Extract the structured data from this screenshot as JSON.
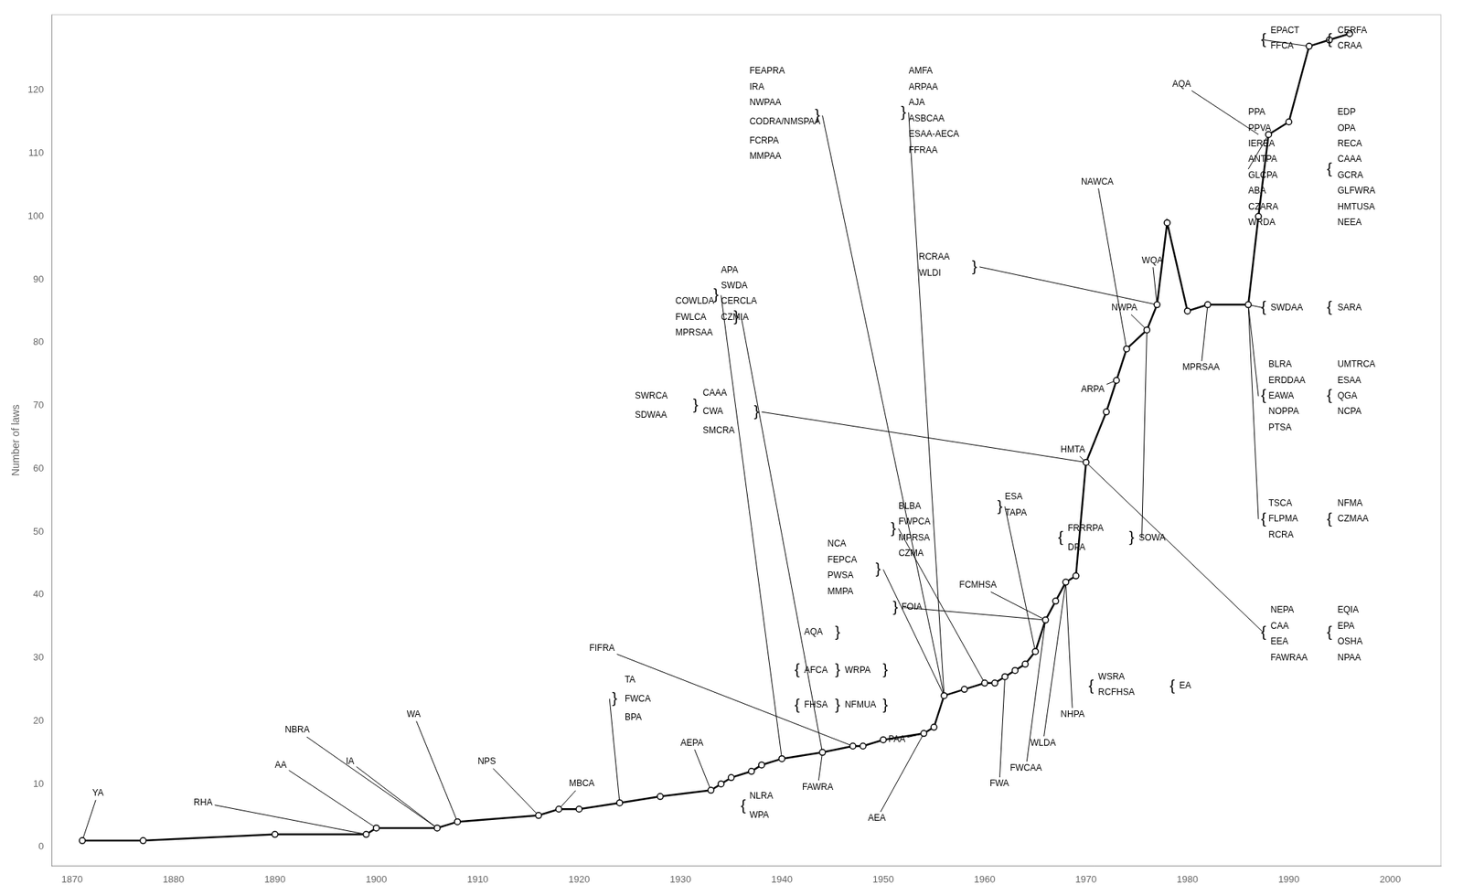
{
  "chart_data": {
    "type": "line",
    "ylabel": "Number of laws",
    "x": [
      1871,
      1877,
      1890,
      1899,
      1900,
      1906,
      1908,
      1916,
      1918,
      1920,
      1924,
      1928,
      1933,
      1934,
      1935,
      1937,
      1938,
      1940,
      1944,
      1947,
      1948,
      1950,
      1954,
      1955,
      1956,
      1958,
      1960,
      1961,
      1962,
      1963,
      1964,
      1965,
      1966,
      1967,
      1968,
      1969,
      1970,
      1972,
      1973,
      1974,
      1976,
      1977,
      1978,
      1980,
      1982,
      1986,
      1987,
      1988,
      1990,
      1992,
      1994,
      1996
    ],
    "values": [
      1,
      1,
      2,
      2,
      3,
      3,
      4,
      5,
      6,
      6,
      7,
      8,
      9,
      10,
      11,
      12,
      13,
      14,
      15,
      16,
      16,
      17,
      18,
      19,
      24,
      25,
      26,
      26,
      27,
      28,
      29,
      31,
      36,
      39,
      42,
      43,
      61,
      69,
      74,
      79,
      82,
      86,
      99,
      85,
      86,
      86,
      100,
      113,
      115,
      127,
      128,
      129
    ],
    "color": "#000000",
    "marker": "circle",
    "xlim": [
      1868,
      2005
    ],
    "ylim": [
      -3,
      132
    ],
    "xticks": [
      1870,
      1880,
      1890,
      1900,
      1910,
      1920,
      1930,
      1940,
      1950,
      1960,
      1970,
      1980,
      1990,
      2000
    ],
    "yticks": [
      0,
      10,
      20,
      30,
      40,
      50,
      60,
      70,
      80,
      90,
      100,
      110,
      120
    ],
    "grid": false,
    "annotations": [
      {
        "text": "YA",
        "x": 1872,
        "y": 8.5,
        "arrow_to": [
          1871,
          1
        ]
      },
      {
        "text": "RHA",
        "x": 1882,
        "y": 7,
        "arrow_to": [
          1899,
          2
        ]
      },
      {
        "text": "AA",
        "x": 1890,
        "y": 13,
        "arrow_to": [
          1900,
          3
        ]
      },
      {
        "text": "NBRA",
        "x": 1891,
        "y": 18.5,
        "arrow_to": [
          1906,
          3
        ]
      },
      {
        "text": "IA",
        "x": 1897,
        "y": 13.5,
        "arrow_to": [
          1906,
          3
        ]
      },
      {
        "text": "WA",
        "x": 1903,
        "y": 21,
        "arrow_to": [
          1908,
          4
        ]
      },
      {
        "text": "NPS",
        "x": 1910,
        "y": 13.5,
        "arrow_to": [
          1916,
          5
        ]
      },
      {
        "text": "MBCA",
        "x": 1919,
        "y": 10,
        "arrow_to": [
          1918,
          6
        ]
      },
      {
        "text": "TA",
        "x": 1924.5,
        "y": 26.5
      },
      {
        "text": "FWCA",
        "x": 1924.5,
        "y": 23.5
      },
      {
        "text": "BPA",
        "x": 1924.5,
        "y": 20.5
      },
      {
        "text": "}",
        "x": 1923.5,
        "y": 23.5
      },
      {
        "text": "FIFRA",
        "x": 1921,
        "y": 31.5,
        "arrow_to": [
          1947,
          16
        ]
      },
      {
        "text": "AEPA",
        "x": 1930,
        "y": 16.5,
        "arrow_to": [
          1933,
          9
        ]
      },
      {
        "text": "{",
        "x": 1936.2,
        "y": 6.5
      },
      {
        "text": "NLRA",
        "x": 1936.8,
        "y": 8.0
      },
      {
        "text": "WPA",
        "x": 1936.8,
        "y": 5.0
      },
      {
        "text": "FAWRA",
        "x": 1942,
        "y": 9.5,
        "arrow_to": [
          1944,
          15
        ]
      },
      {
        "text": "AEA",
        "x": 1948.5,
        "y": 4.5,
        "arrow_to": [
          1954,
          18
        ]
      },
      {
        "text": "{",
        "x": 1941.5,
        "y": 22.5
      },
      {
        "text": "FHSA",
        "x": 1942.2,
        "y": 22.5
      },
      {
        "text": "}",
        "x": 1945.5,
        "y": 22.5
      },
      {
        "text": "NFMUA",
        "x": 1946.2,
        "y": 22.5
      },
      {
        "text": "}",
        "x": 1950.2,
        "y": 22.5
      },
      {
        "text": "{",
        "x": 1941.5,
        "y": 28.0
      },
      {
        "text": "AFCA",
        "x": 1942.2,
        "y": 28.0
      },
      {
        "text": "}",
        "x": 1945.5,
        "y": 28.0
      },
      {
        "text": "WRPA",
        "x": 1946.2,
        "y": 28.0
      },
      {
        "text": "}",
        "x": 1950.2,
        "y": 28.0
      },
      {
        "text": "AQA",
        "x": 1942.2,
        "y": 34.0
      },
      {
        "text": "}",
        "x": 1945.5,
        "y": 34.0
      },
      {
        "text": "PAA",
        "x": 1950.5,
        "y": 17.0,
        "arrow_to": [
          1954,
          18
        ]
      },
      {
        "text": "NCA",
        "x": 1944.5,
        "y": 48.0
      },
      {
        "text": "FEPCA",
        "x": 1944.5,
        "y": 45.5
      },
      {
        "text": "PWSA",
        "x": 1944.5,
        "y": 43.0
      },
      {
        "text": "MMPA",
        "x": 1944.5,
        "y": 40.5
      },
      {
        "text": "}",
        "x": 1949.5,
        "y": 44.0
      },
      {
        "text": "BLBA",
        "x": 1951.5,
        "y": 54.0
      },
      {
        "text": "FWPCA",
        "x": 1951.5,
        "y": 51.5
      },
      {
        "text": "MPRSA",
        "x": 1951.5,
        "y": 49.0
      },
      {
        "text": "CZMA",
        "x": 1951.5,
        "y": 46.5
      },
      {
        "text": "}",
        "x": 1951.0,
        "y": 50.5
      },
      {
        "text": "ESA",
        "x": 1962.0,
        "y": 55.5
      },
      {
        "text": "TAPA",
        "x": 1962.0,
        "y": 53.0
      },
      {
        "text": "}",
        "x": 1961.5,
        "y": 54.0
      },
      {
        "text": "FCMHSA",
        "x": 1957.5,
        "y": 41.5,
        "arrow_to": [
          1966,
          36
        ]
      },
      {
        "text": "HMTA",
        "x": 1967.5,
        "y": 63.0,
        "arrow_to": [
          1970,
          61
        ]
      },
      {
        "text": "FWA",
        "x": 1960.5,
        "y": 10.0,
        "arrow_to": [
          1962,
          27
        ]
      },
      {
        "text": "FWCAA",
        "x": 1962.5,
        "y": 12.5,
        "arrow_to": [
          1966,
          36
        ]
      },
      {
        "text": "WLDA",
        "x": 1964.5,
        "y": 16.5,
        "arrow_to": [
          1968,
          42
        ]
      },
      {
        "text": "NHPA",
        "x": 1967.5,
        "y": 21.0,
        "arrow_to": [
          1968,
          42
        ]
      },
      {
        "text": "FOIA",
        "x": 1951.8,
        "y": 38.0
      },
      {
        "text": "}",
        "x": 1951.2,
        "y": 38.0
      },
      {
        "text": "ARPA",
        "x": 1969.5,
        "y": 72.5,
        "arrow_to": [
          1973,
          74
        ]
      },
      {
        "text": "NAWCA",
        "x": 1969.5,
        "y": 105.5,
        "arrow_to": [
          1974,
          79
        ]
      },
      {
        "text": "NWPA",
        "x": 1972.5,
        "y": 85.5,
        "arrow_to": [
          1976,
          82
        ]
      },
      {
        "text": "WQA",
        "x": 1975.5,
        "y": 93.0,
        "arrow_to": [
          1977,
          86
        ]
      },
      {
        "text": "RCRAA",
        "x": 1953.5,
        "y": 93.5
      },
      {
        "text": "WLDI",
        "x": 1953.5,
        "y": 91.0
      },
      {
        "text": "}",
        "x": 1959.0,
        "y": 92.0
      },
      {
        "text": "AMFA",
        "x": 1952.5,
        "y": 123.0
      },
      {
        "text": "ARPAA",
        "x": 1952.5,
        "y": 120.5
      },
      {
        "text": "AJA",
        "x": 1952.5,
        "y": 118.0
      },
      {
        "text": "ASBCAA",
        "x": 1952.5,
        "y": 115.5
      },
      {
        "text": "ESAA-AECA",
        "x": 1952.5,
        "y": 113.0
      },
      {
        "text": "FFRAA",
        "x": 1952.5,
        "y": 110.5
      },
      {
        "text": "}",
        "x": 1952.0,
        "y": 116.5
      },
      {
        "text": "FEAPRA",
        "x": 1936.8,
        "y": 123.0
      },
      {
        "text": "IRA",
        "x": 1936.8,
        "y": 120.5
      },
      {
        "text": "NWPAA",
        "x": 1936.8,
        "y": 118.0
      },
      {
        "text": "CODRA/NMSPAA",
        "x": 1936.8,
        "y": 115.0
      },
      {
        "text": "FCRPA",
        "x": 1936.8,
        "y": 112.0
      },
      {
        "text": "MMPAA",
        "x": 1936.8,
        "y": 109.5
      },
      {
        "text": "}",
        "x": 1943.5,
        "y": 116.0
      },
      {
        "text": "COWLDA",
        "x": 1929.5,
        "y": 86.5
      },
      {
        "text": "FWLCA",
        "x": 1929.5,
        "y": 84.0
      },
      {
        "text": "MPRSAA",
        "x": 1929.5,
        "y": 81.5
      },
      {
        "text": "}",
        "x": 1935.5,
        "y": 84.0
      },
      {
        "text": "APA",
        "x": 1934.0,
        "y": 91.5
      },
      {
        "text": "SWDA",
        "x": 1934.0,
        "y": 89.0
      },
      {
        "text": "CERCLA",
        "x": 1934.0,
        "y": 86.5
      },
      {
        "text": "CZMIA",
        "x": 1934.0,
        "y": 84.0
      },
      {
        "text": "}",
        "x": 1933.5,
        "y": 87.5
      },
      {
        "text": "SWRCA",
        "x": 1925.5,
        "y": 71.5
      },
      {
        "text": "SDWAA",
        "x": 1925.5,
        "y": 68.5
      },
      {
        "text": "}",
        "x": 1931.5,
        "y": 70.0
      },
      {
        "text": "CAAA",
        "x": 1932.2,
        "y": 72.0
      },
      {
        "text": "CWA",
        "x": 1932.2,
        "y": 69.0
      },
      {
        "text": "SMCRA",
        "x": 1932.2,
        "y": 66.0
      },
      {
        "text": "}",
        "x": 1937.5,
        "y": 69.0
      },
      {
        "text": "{",
        "x": 1967.5,
        "y": 49.0
      },
      {
        "text": "FRRRPA",
        "x": 1968.2,
        "y": 50.5
      },
      {
        "text": "DPA",
        "x": 1968.2,
        "y": 47.5
      },
      {
        "text": "}",
        "x": 1974.5,
        "y": 49.0
      },
      {
        "text": "SOWA",
        "x": 1975.2,
        "y": 49.0
      },
      {
        "text": "{",
        "x": 1970.5,
        "y": 25.5
      },
      {
        "text": "WSRA",
        "x": 1971.2,
        "y": 27.0
      },
      {
        "text": "RCFHSA",
        "x": 1971.2,
        "y": 24.5
      },
      {
        "text": "{",
        "x": 1978.5,
        "y": 25.5
      },
      {
        "text": "EA",
        "x": 1979.2,
        "y": 25.5
      },
      {
        "text": "MPRSAA",
        "x": 1979.5,
        "y": 76.0,
        "arrow_to": [
          1982,
          86
        ]
      },
      {
        "text": "BLRA",
        "x": 1988.0,
        "y": 76.5
      },
      {
        "text": "ERDDAA",
        "x": 1988.0,
        "y": 74.0
      },
      {
        "text": "EAWA",
        "x": 1988.0,
        "y": 71.5
      },
      {
        "text": "NOPPA",
        "x": 1988.0,
        "y": 69.0
      },
      {
        "text": "PTSA",
        "x": 1988.0,
        "y": 66.5
      },
      {
        "text": "{",
        "x": 1987.5,
        "y": 71.5
      },
      {
        "text": "{",
        "x": 1994.0,
        "y": 71.5
      },
      {
        "text": "UMTRCA",
        "x": 1994.8,
        "y": 76.5
      },
      {
        "text": "ESAA",
        "x": 1994.8,
        "y": 74.0
      },
      {
        "text": "QGA",
        "x": 1994.8,
        "y": 71.5
      },
      {
        "text": "NCPA",
        "x": 1994.8,
        "y": 69.0
      },
      {
        "text": "TSCA",
        "x": 1988.0,
        "y": 54.5
      },
      {
        "text": "FLPMA",
        "x": 1988.0,
        "y": 52.0
      },
      {
        "text": "RCRA",
        "x": 1988.0,
        "y": 49.5
      },
      {
        "text": "{",
        "x": 1987.5,
        "y": 52.0
      },
      {
        "text": "{",
        "x": 1994.0,
        "y": 52.0
      },
      {
        "text": "NFMA",
        "x": 1994.8,
        "y": 54.5
      },
      {
        "text": "CZMAA",
        "x": 1994.8,
        "y": 52.0
      },
      {
        "text": "{",
        "x": 1987.5,
        "y": 34.0
      },
      {
        "text": "NEPA",
        "x": 1988.2,
        "y": 37.5
      },
      {
        "text": "CAA",
        "x": 1988.2,
        "y": 35.0
      },
      {
        "text": "EEA",
        "x": 1988.2,
        "y": 32.5
      },
      {
        "text": "FAWRAA",
        "x": 1988.2,
        "y": 30.0
      },
      {
        "text": "{",
        "x": 1994.0,
        "y": 34.0
      },
      {
        "text": "EQIA",
        "x": 1994.8,
        "y": 37.5
      },
      {
        "text": "EPA",
        "x": 1994.8,
        "y": 35.0
      },
      {
        "text": "OSHA",
        "x": 1994.8,
        "y": 32.5
      },
      {
        "text": "NPAA",
        "x": 1994.8,
        "y": 30.0
      },
      {
        "text": "{",
        "x": 1987.5,
        "y": 85.5
      },
      {
        "text": "SWDAA",
        "x": 1988.2,
        "y": 85.5
      },
      {
        "text": "{",
        "x": 1994.0,
        "y": 85.5
      },
      {
        "text": "SARA",
        "x": 1994.8,
        "y": 85.5
      },
      {
        "text": "PPA",
        "x": 1986.0,
        "y": 116.5
      },
      {
        "text": "PPVA",
        "x": 1986.0,
        "y": 114.0
      },
      {
        "text": "IEREA",
        "x": 1986.0,
        "y": 111.5
      },
      {
        "text": "ANTPA",
        "x": 1986.0,
        "y": 109.0
      },
      {
        "text": "GLCPA",
        "x": 1986.0,
        "y": 106.5
      },
      {
        "text": "ABA",
        "x": 1986.0,
        "y": 104.0
      },
      {
        "text": "CZARA",
        "x": 1986.0,
        "y": 101.5
      },
      {
        "text": "WRDA",
        "x": 1986.0,
        "y": 99.0
      },
      {
        "text": "{",
        "x": 1994.0,
        "y": 107.5
      },
      {
        "text": "EDP",
        "x": 1994.8,
        "y": 116.5
      },
      {
        "text": "OPA",
        "x": 1994.8,
        "y": 114.0
      },
      {
        "text": "RECA",
        "x": 1994.8,
        "y": 111.5
      },
      {
        "text": "CAAA",
        "x": 1994.8,
        "y": 109.0
      },
      {
        "text": "GCRA",
        "x": 1994.8,
        "y": 106.5
      },
      {
        "text": "GLFWRA",
        "x": 1994.8,
        "y": 104.0
      },
      {
        "text": "HMTUSA",
        "x": 1994.8,
        "y": 101.5
      },
      {
        "text": "NEEA",
        "x": 1994.8,
        "y": 99.0
      },
      {
        "text": "AQA",
        "x": 1978.5,
        "y": 121.0,
        "arrow_to": [
          1987,
          113
        ]
      },
      {
        "text": "{",
        "x": 1987.5,
        "y": 128.0
      },
      {
        "text": "EPACT",
        "x": 1988.2,
        "y": 129.5
      },
      {
        "text": "FFCA",
        "x": 1988.2,
        "y": 127.0
      },
      {
        "text": "{",
        "x": 1994.0,
        "y": 128.0
      },
      {
        "text": "CERFA",
        "x": 1994.8,
        "y": 129.5
      },
      {
        "text": "CRAA",
        "x": 1994.8,
        "y": 127.0
      }
    ],
    "lines": [
      [
        [
          1923.0,
          23.5
        ],
        [
          1924,
          7
        ]
      ],
      [
        [
          1950.0,
          44.0
        ],
        [
          1956,
          24
        ]
      ],
      [
        [
          1951.5,
          50.5
        ],
        [
          1960,
          26
        ]
      ],
      [
        [
          1962.0,
          54.0
        ],
        [
          1965,
          31
        ]
      ],
      [
        [
          1952.0,
          38.0
        ],
        [
          1966,
          36
        ]
      ],
      [
        [
          1959.5,
          92.0
        ],
        [
          1977,
          86
        ]
      ],
      [
        [
          1952.5,
          116.5
        ],
        [
          1956,
          24
        ]
      ],
      [
        [
          1944.0,
          116.0
        ],
        [
          1956,
          24
        ]
      ],
      [
        [
          1936.0,
          84.0
        ],
        [
          1944,
          15
        ]
      ],
      [
        [
          1934.0,
          87.5
        ],
        [
          1940,
          14
        ]
      ],
      [
        [
          1938.0,
          69.0
        ],
        [
          1970,
          61
        ]
      ],
      [
        [
          1975.5,
          49.0
        ],
        [
          1976,
          82
        ]
      ],
      [
        [
          1987.0,
          71.5
        ],
        [
          1986,
          86
        ]
      ],
      [
        [
          1987.0,
          52.0
        ],
        [
          1986,
          86
        ]
      ],
      [
        [
          1987.5,
          34.0
        ],
        [
          1970,
          61
        ]
      ],
      [
        [
          1987.5,
          85.5
        ],
        [
          1986,
          86
        ]
      ],
      [
        [
          1986.0,
          107.5
        ],
        [
          1988,
          113
        ]
      ],
      [
        [
          1987.5,
          128.0
        ],
        [
          1992,
          127
        ]
      ]
    ]
  }
}
